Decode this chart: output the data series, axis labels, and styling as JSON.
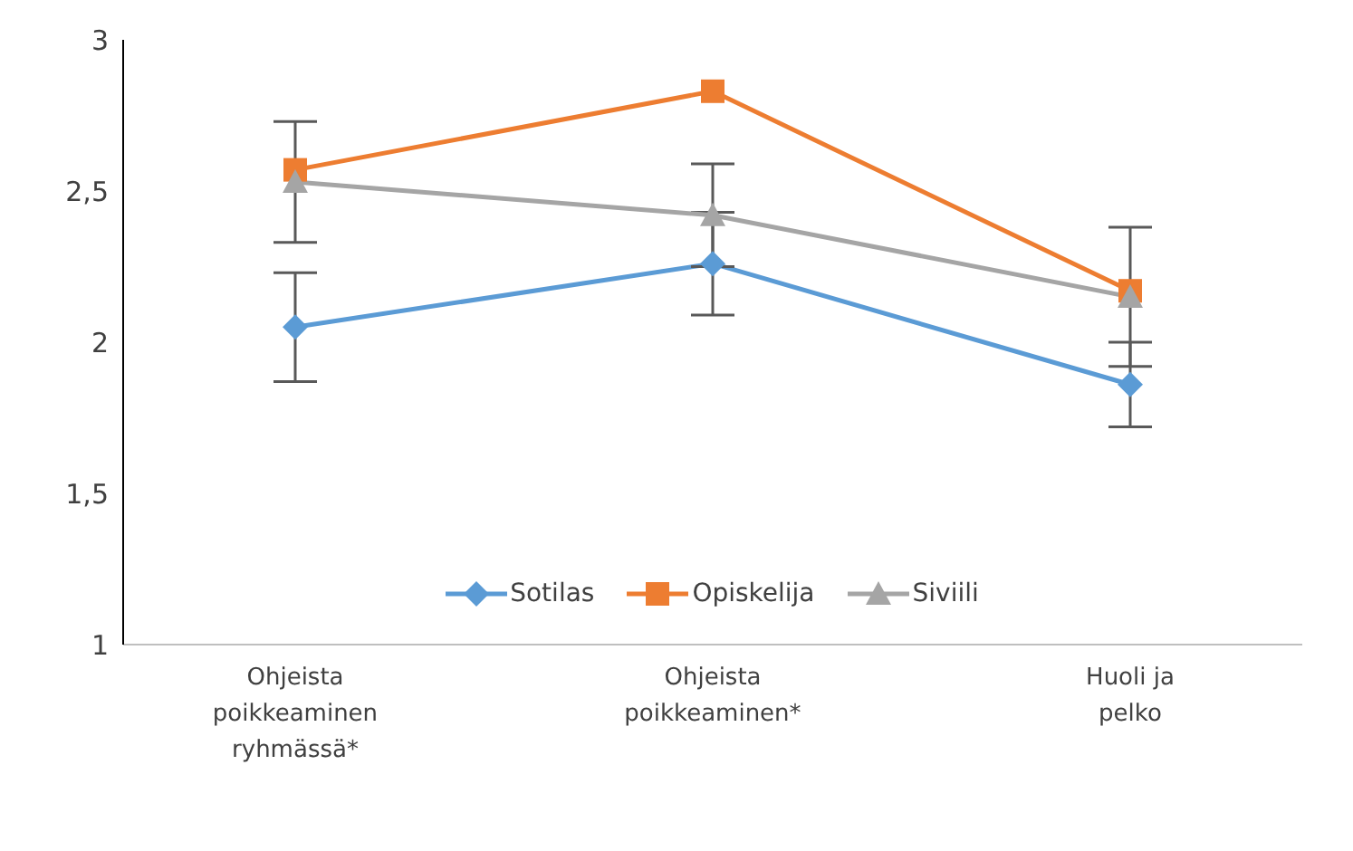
{
  "chart_data": {
    "type": "line",
    "categories": [
      "Ohjeista poikkeaminen ryhmässä*",
      "Ohjeista poikkeaminen*",
      "Huoli ja pelko"
    ],
    "series": [
      {
        "name": "Sotilas",
        "color": "#5b9bd5",
        "marker": "diamond",
        "values": [
          2.05,
          2.26,
          1.86
        ],
        "errors": [
          0.18,
          0.17,
          0.14
        ]
      },
      {
        "name": "Opiskelija",
        "color": "#ed7d31",
        "marker": "square",
        "values": [
          2.57,
          2.83,
          2.17
        ]
      },
      {
        "name": "Siviili",
        "color": "#a5a5a5",
        "marker": "triangle",
        "values": [
          2.53,
          2.42,
          2.15
        ],
        "errors": [
          0.2,
          0.17,
          0.23
        ]
      }
    ],
    "ylim": [
      1,
      3
    ],
    "yticks": [
      1,
      {
        "value": 1.5,
        "label": "1,5"
      },
      2,
      {
        "value": 2.5,
        "label": "2,5"
      },
      3
    ],
    "grid": false,
    "legend": "bottom"
  }
}
